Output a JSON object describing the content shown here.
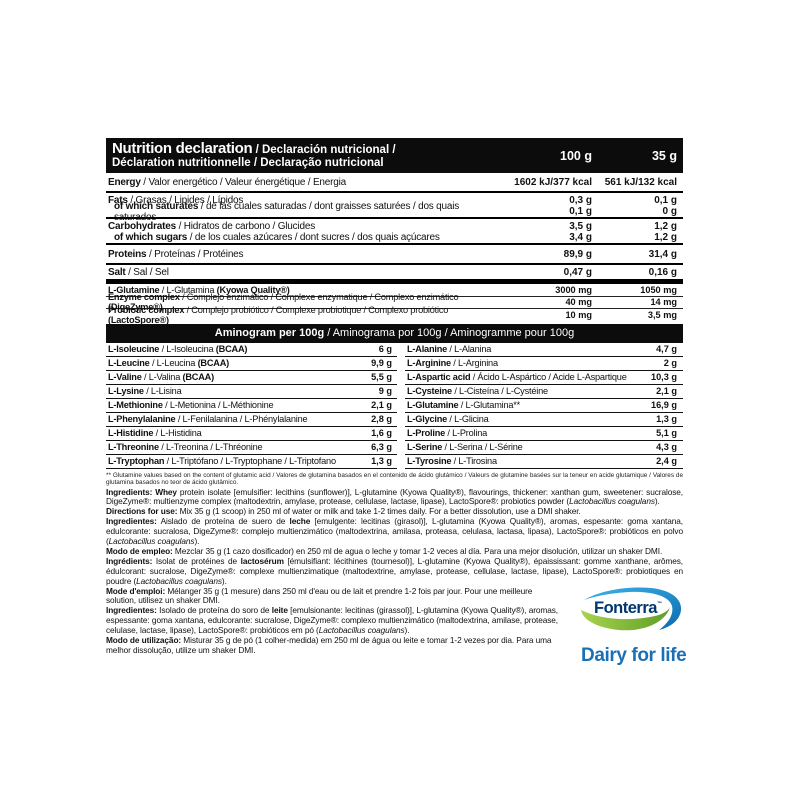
{
  "header": {
    "title_primary": "Nutrition declaration",
    "title_rest": " / Declaración nutricional /",
    "title_line2": "Déclaration nutritionnelle / Declaração nutricional",
    "col_100g": "100 g",
    "col_35g": "35 g"
  },
  "nutrition_rows": [
    {
      "cls": "r-main sep-med",
      "segs": [
        [
          "Energy",
          1
        ],
        [
          " / Valor energético / Valeur énergétique / Energia",
          0
        ]
      ],
      "v100": "1602 kJ/377 kcal",
      "v35": "561 kJ/132 kcal"
    },
    {
      "cls": "r-sub1",
      "segs": [
        [
          "Fats",
          1
        ],
        [
          " / Grasas / Lipides / Lípidos",
          0
        ]
      ],
      "v100": "0,3 g",
      "v35": "0,1 g"
    },
    {
      "cls": "r-sub2 sep-med indent",
      "segs": [
        [
          "of which saturates",
          1
        ],
        [
          " / de las cuales saturadas / dont graisses saturées / dos quais saturados",
          0
        ]
      ],
      "v100": "0,1 g",
      "v35": "0 g"
    },
    {
      "cls": "r-sub1",
      "segs": [
        [
          "Carbohydrates",
          1
        ],
        [
          " / Hidratos de carbono / Glucides",
          0
        ]
      ],
      "v100": "3,5 g",
      "v35": "1,2 g"
    },
    {
      "cls": "r-sub2 sep-med indent",
      "segs": [
        [
          "of which sugars",
          1
        ],
        [
          " / de los cuales azúcares / dont sucres / dos quais açúcares",
          0
        ]
      ],
      "v100": "3,4 g",
      "v35": "1,2 g"
    },
    {
      "cls": "r-main sep-med",
      "segs": [
        [
          "Proteins",
          1
        ],
        [
          " / Proteínas / Protéines",
          0
        ]
      ],
      "v100": "89,9 g",
      "v35": "31,4 g"
    },
    {
      "cls": "r-salt sep-thick",
      "segs": [
        [
          "Salt",
          1
        ],
        [
          " / Sal / Sel",
          0
        ]
      ],
      "v100": "0,47 g",
      "v35": "0,16 g"
    },
    {
      "cls": "r-sm sep-thin",
      "segs": [
        [
          "L-Glutamine",
          1
        ],
        [
          " / L-Glutamina ",
          0
        ],
        [
          "(Kyowa Quality®)",
          1
        ]
      ],
      "v100": "3000 mg",
      "v35": "1050 mg"
    },
    {
      "cls": "r-sm sep-thin",
      "segs": [
        [
          "Enzyme complex",
          1
        ],
        [
          " / Complejo enzimático / Complexe enzymatique / Complexo enzimático ",
          0
        ],
        [
          "(DigeZyme®)",
          1
        ]
      ],
      "v100": "40 mg",
      "v35": "14 mg"
    },
    {
      "cls": "r-sm",
      "segs": [
        [
          "Probiotic complex",
          1
        ],
        [
          " / Complejo probiótico / Complexe probiotique / Complexo probiótico ",
          0
        ],
        [
          "(LactoSpore®)",
          1
        ]
      ],
      "v100": "10 mg",
      "v35": "3,5 mg"
    }
  ],
  "aminogram": {
    "header_bold": "Aminogram per 100g",
    "header_rest": "/ Aminograma por 100g / Aminogramme pour 100g",
    "left": [
      {
        "segs": [
          [
            "L-Isoleucine",
            1
          ],
          [
            " / L-Isoleucina ",
            0
          ],
          [
            "(BCAA)",
            1
          ]
        ],
        "v": "6 g"
      },
      {
        "segs": [
          [
            "L-Leucine",
            1
          ],
          [
            " / L-Leucina ",
            0
          ],
          [
            "(BCAA)",
            1
          ]
        ],
        "v": "9,9 g"
      },
      {
        "segs": [
          [
            "L-Valine",
            1
          ],
          [
            " / L-Valina ",
            0
          ],
          [
            "(BCAA)",
            1
          ]
        ],
        "v": "5,5 g"
      },
      {
        "segs": [
          [
            "L-Lysine",
            1
          ],
          [
            " / L-Lisina",
            0
          ]
        ],
        "v": "9 g"
      },
      {
        "segs": [
          [
            "L-Methionine",
            1
          ],
          [
            " / L-Metionina / L-Méthionine",
            0
          ]
        ],
        "v": "2,1 g"
      },
      {
        "segs": [
          [
            "L-Phenylalanine",
            1
          ],
          [
            " / L-Fenilalanina / L-Phénylalanine",
            0
          ]
        ],
        "v": "2,8 g"
      },
      {
        "segs": [
          [
            "L-Histidine",
            1
          ],
          [
            " / L-Histidina",
            0
          ]
        ],
        "v": "1,6 g"
      },
      {
        "segs": [
          [
            "L-Threonine",
            1
          ],
          [
            " / L-Treonina / L-Thréonine",
            0
          ]
        ],
        "v": "6,3 g"
      },
      {
        "segs": [
          [
            "L-Tryptophan",
            1
          ],
          [
            " / L-Triptófano / L-Tryptophane / L-Triptofano",
            0
          ]
        ],
        "v": "1,3 g"
      }
    ],
    "right": [
      {
        "segs": [
          [
            "L-Alanine",
            1
          ],
          [
            " / L-Alanina",
            0
          ]
        ],
        "v": "4,7 g"
      },
      {
        "segs": [
          [
            "L-Arginine",
            1
          ],
          [
            " / L-Arginina",
            0
          ]
        ],
        "v": "2 g"
      },
      {
        "segs": [
          [
            "L-Aspartic acid",
            1
          ],
          [
            " / Ácido L-Aspártico / Acide L-Aspartique",
            0
          ]
        ],
        "v": "10,3 g"
      },
      {
        "segs": [
          [
            "L-Cysteine",
            1
          ],
          [
            " / L-Cisteína / L-Cystéine",
            0
          ]
        ],
        "v": "2,1 g"
      },
      {
        "segs": [
          [
            "L-Glutamine",
            1
          ],
          [
            " / L-Glutamina**",
            0
          ]
        ],
        "v": "16,9 g"
      },
      {
        "segs": [
          [
            "L-Glycine",
            1
          ],
          [
            " / L-Glicina",
            0
          ]
        ],
        "v": "1,3 g"
      },
      {
        "segs": [
          [
            "L-Proline",
            1
          ],
          [
            " / L-Prolina",
            0
          ]
        ],
        "v": "5,1 g"
      },
      {
        "segs": [
          [
            "L-Serine",
            1
          ],
          [
            " / L-Serina / L-Sérine",
            0
          ]
        ],
        "v": "4,3 g"
      },
      {
        "segs": [
          [
            "L-Tyrosine",
            1
          ],
          [
            " / L-Tirosina",
            0
          ]
        ],
        "v": "2,4 g"
      }
    ],
    "footnote": "** Glutamine values based on the content of glutamic acid / Valores de glutamina basados en el contenido de ácido glutámico / Valeurs de glutamine basées sur la teneur en acide glutamique / Valores de glutamina basados no teor de ácido glutâmico."
  },
  "body_paragraphs": [
    {
      "name": "ingredients-en",
      "narrow": false,
      "justify": true,
      "segs": [
        [
          "Ingredients: Whey",
          1
        ],
        [
          " protein isolate [emulsifier: lecithins (sunflower)], L-glutamine (Kyowa Quality®), flavourings, thickener: xanthan gum, sweetener: sucralose, DigeZyme®: multienzyme complex (maltodextrin, amylase, protease, cellulase, lactase, lipase), LactoSpore®: probiotics powder (",
          0
        ],
        [
          "Lactobacillus coagulans",
          2
        ],
        [
          ").",
          0
        ]
      ]
    },
    {
      "name": "directions-en",
      "narrow": false,
      "justify": false,
      "segs": [
        [
          "Directions for use:",
          1
        ],
        [
          " Mix 35 g (1 scoop) in 250 ml of water or milk and take 1-2 times daily. For a better dissolution, use a DMI shaker.",
          0
        ]
      ]
    },
    {
      "name": "ingredients-es",
      "narrow": false,
      "justify": true,
      "segs": [
        [
          "Ingredientes:",
          1
        ],
        [
          " Aislado de proteína de suero de ",
          0
        ],
        [
          "leche",
          1
        ],
        [
          " [emulgente: lecitinas (girasol)], L-glutamina (Kyowa Quality®), aromas, espesante: goma xantana, edulcorante: sucralosa, DigeZyme®: complejo multienzimático (maltodextrina, amilasa, proteasa, celulasa, lactasa, lipasa), LactoSpore®: probióticos en polvo (",
          0
        ],
        [
          "Lactobacillus coagulans",
          2
        ],
        [
          ").",
          0
        ]
      ]
    },
    {
      "name": "directions-es",
      "narrow": false,
      "justify": false,
      "segs": [
        [
          "Modo de empleo:",
          1
        ],
        [
          " Mezclar 35 g (1 cazo dosificador) en 250 ml de agua o leche y tomar 1-2 veces al día. Para una mejor disolución, utilizar un shaker DMI.",
          0
        ]
      ]
    },
    {
      "name": "ingredients-fr",
      "narrow": false,
      "justify": true,
      "segs": [
        [
          "Ingrédients:",
          1
        ],
        [
          " Isolat de protéines de ",
          0
        ],
        [
          "lactosérum",
          1
        ],
        [
          " [émulsifiant: lécithines (tournesol)], L-glutamine (Kyowa Quality®), épaississant: gomme xanthane, arômes, édulcorant: sucralose, DigeZyme®: complexe multienzimatique (maltodextrine, amylase, protease, cellulase, lactase, lipase), LactoSpore®: probiotiques en poudre (",
          0
        ],
        [
          "Lactobacillus coagulans",
          2
        ],
        [
          ").",
          0
        ]
      ]
    },
    {
      "name": "directions-fr",
      "narrow": true,
      "justify": false,
      "segs": [
        [
          "Mode d'emploi:",
          1
        ],
        [
          " Mélanger 35 g (1 mesure) dans 250 ml d'eau ou de lait et prendre 1-2 fois par jour. Pour une meilleure solution, utilisez un shaker DMI.",
          0
        ]
      ]
    },
    {
      "name": "ingredients-pt",
      "narrow": true,
      "justify": true,
      "segs": [
        [
          "Ingredientes:",
          1
        ],
        [
          " Isolado de proteína do soro de ",
          0
        ],
        [
          "leite",
          1
        ],
        [
          " [emulsionante: lecitinas (girassol)], L-glutamina (Kyowa Quality®), aromas, espessante: goma xantana, edulcorante: sucralose, DigeZyme®: complexo multienzimático (maltodextrina, amilase, protease, celulase, lactase, lipase), LactoSpore®: probióticos em pó (",
          0
        ],
        [
          "Lactobacillus coagulans",
          2
        ],
        [
          ").",
          0
        ]
      ]
    },
    {
      "name": "directions-pt",
      "narrow": true,
      "justify": false,
      "segs": [
        [
          "Modo de utilização:",
          1
        ],
        [
          " Misturar 35 g de pó (1 colher-medida) em 250 ml de água ou leite e tomar 1-2 vezes por dia. Para uma melhor dissolução, utilize um shaker DMI.",
          0
        ]
      ]
    }
  ],
  "logo": {
    "brand": "Fonterra",
    "tm": "™",
    "tagline": "Dairy for life",
    "colors": {
      "brand_navy": "#00376e",
      "swoosh_blue_light": "#3fb4e8",
      "swoosh_blue_dark": "#0a6ab1",
      "swoosh_green_light": "#a8d34f",
      "swoosh_green_dark": "#5f9e27",
      "tagline_blue": "#1b6fb5"
    }
  }
}
